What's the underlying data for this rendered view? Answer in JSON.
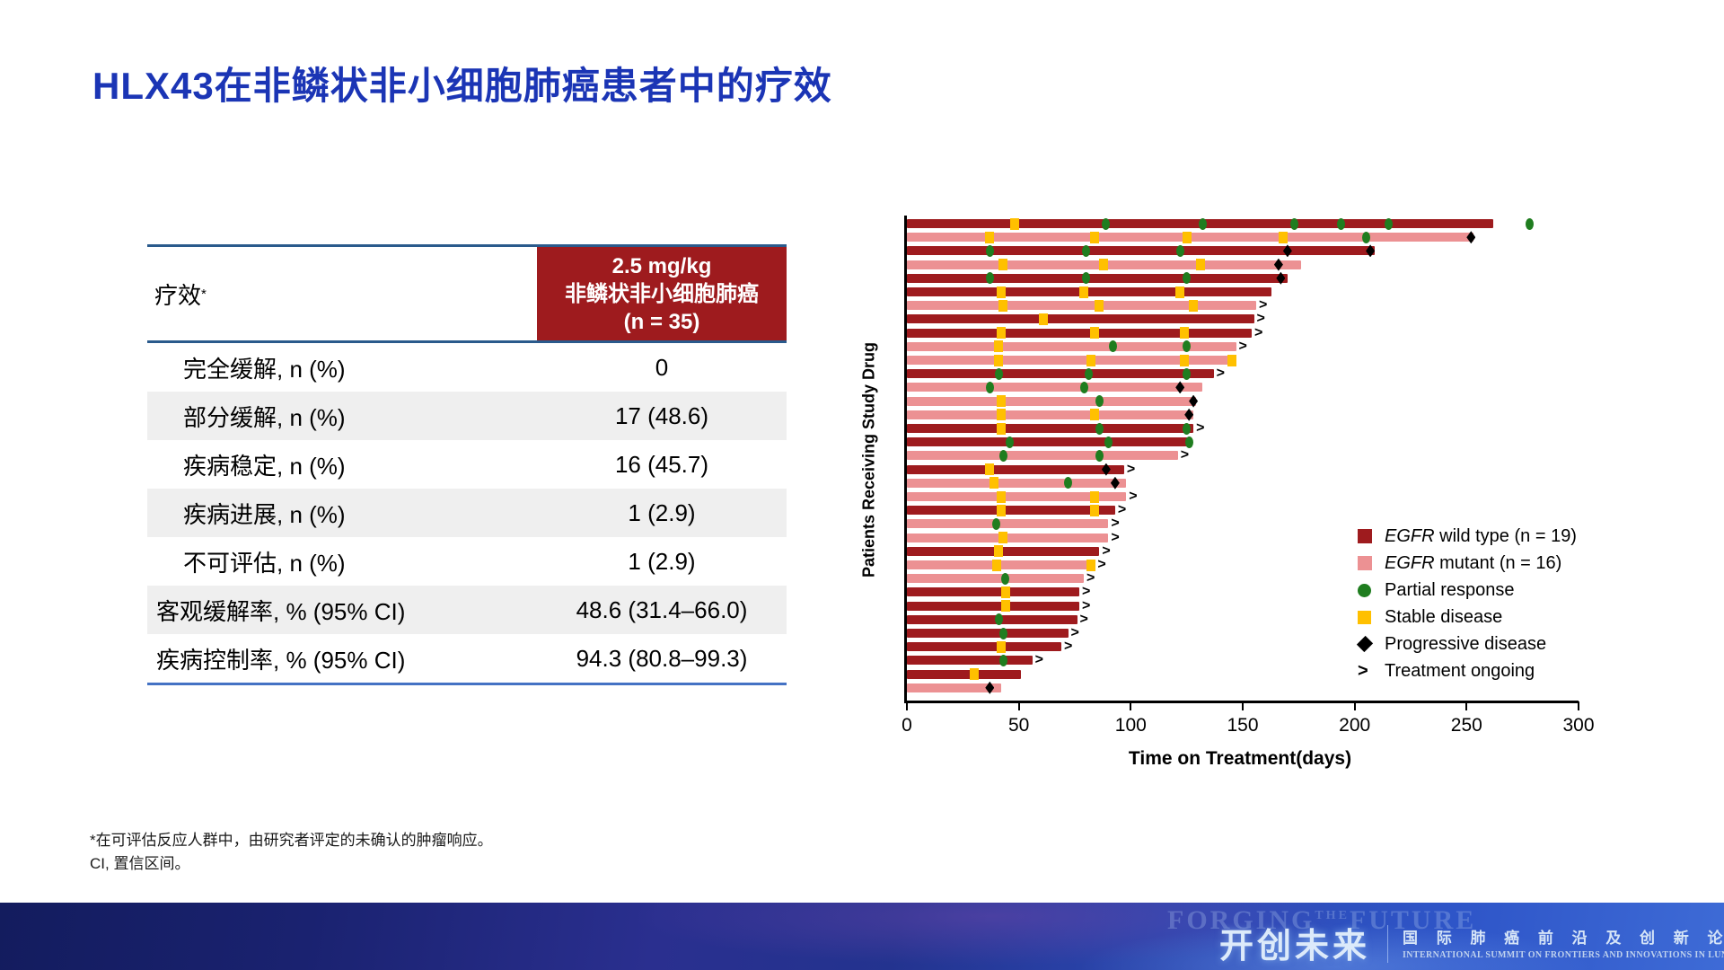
{
  "colors": {
    "title_blue": "#1B35B5",
    "accent_red": "#9E1B1E",
    "row_alt": "#EFEFEF",
    "table_line_top": "#2A5A8C",
    "table_line_bottom": "#4472C4"
  },
  "title": "HLX43在非鳞状非小细胞肺癌患者中的疗效",
  "table": {
    "header_left": "疗效",
    "header_left_sup": "*",
    "header_right_lines": [
      "2.5 mg/kg",
      "非鳞状非小细胞肺癌",
      "(n = 35)"
    ],
    "rows": [
      {
        "label": "完全缓解, n (%)",
        "value": "0",
        "indent": true
      },
      {
        "label": "部分缓解, n (%)",
        "value": "17 (48.6)",
        "indent": true
      },
      {
        "label": "疾病稳定, n (%)",
        "value": "16 (45.7)",
        "indent": true
      },
      {
        "label": "疾病进展, n (%)",
        "value": "1 (2.9)",
        "indent": true
      },
      {
        "label": "不可评估, n (%)",
        "value": "1 (2.9)",
        "indent": true
      },
      {
        "label": "客观缓解率, % (95% CI)",
        "value": "48.6 (31.4–66.0)",
        "indent": false
      },
      {
        "label": "疾病控制率, % (95% CI)",
        "value": "94.3 (80.8–99.3)",
        "indent": false
      }
    ]
  },
  "chart_data": {
    "type": "bar",
    "orientation": "horizontal-swimmer",
    "title": "",
    "xlabel": "Time on Treatment(days)",
    "ylabel": "Patients Receiving Study Drug",
    "xlim": [
      0,
      300
    ],
    "x_ticks": [
      0,
      50,
      100,
      150,
      200,
      250,
      300
    ],
    "grid": false,
    "legend_position": "right-middle",
    "colors": {
      "wild_type": "#9E1B1E",
      "mutant": "#EC9193",
      "partial_response": "#1F7D1F",
      "stable_disease": "#FFC000",
      "progressive_disease": "#000000"
    },
    "legend": [
      {
        "key": "wt",
        "italic": "EGFR",
        "label": " wild type (n = 19)"
      },
      {
        "key": "mut",
        "italic": "EGFR",
        "label": " mutant (n = 16)"
      },
      {
        "key": "PR",
        "italic": "",
        "label": "Partial response"
      },
      {
        "key": "SD",
        "italic": "",
        "label": "Stable disease"
      },
      {
        "key": "PD",
        "italic": "",
        "label": "Progressive disease"
      },
      {
        "key": "ongoing",
        "italic": "",
        "label": "Treatment ongoing"
      }
    ],
    "patients": [
      {
        "group": "wt",
        "end": 262,
        "ongoing": false,
        "markers": [
          {
            "type": "SD",
            "day": 48
          },
          {
            "type": "PR",
            "day": 89
          },
          {
            "type": "PR",
            "day": 132
          },
          {
            "type": "PR",
            "day": 173
          },
          {
            "type": "PR",
            "day": 194
          },
          {
            "type": "PR",
            "day": 215
          },
          {
            "type": "PR",
            "day": 278
          }
        ]
      },
      {
        "group": "mut",
        "end": 253,
        "ongoing": false,
        "markers": [
          {
            "type": "SD",
            "day": 37
          },
          {
            "type": "SD",
            "day": 84
          },
          {
            "type": "SD",
            "day": 125
          },
          {
            "type": "SD",
            "day": 168
          },
          {
            "type": "PR",
            "day": 205
          },
          {
            "type": "PD",
            "day": 252
          }
        ]
      },
      {
        "group": "wt",
        "end": 209,
        "ongoing": false,
        "markers": [
          {
            "type": "PR",
            "day": 37
          },
          {
            "type": "PR",
            "day": 80
          },
          {
            "type": "PR",
            "day": 122
          },
          {
            "type": "PD",
            "day": 170
          },
          {
            "type": "PD",
            "day": 207
          }
        ]
      },
      {
        "group": "mut",
        "end": 176,
        "ongoing": false,
        "markers": [
          {
            "type": "SD",
            "day": 43
          },
          {
            "type": "SD",
            "day": 88
          },
          {
            "type": "SD",
            "day": 131
          },
          {
            "type": "PD",
            "day": 166
          }
        ]
      },
      {
        "group": "wt",
        "end": 170,
        "ongoing": false,
        "markers": [
          {
            "type": "PR",
            "day": 37
          },
          {
            "type": "PR",
            "day": 80
          },
          {
            "type": "PR",
            "day": 125
          },
          {
            "type": "PD",
            "day": 167
          }
        ]
      },
      {
        "group": "wt",
        "end": 163,
        "ongoing": false,
        "markers": [
          {
            "type": "SD",
            "day": 42
          },
          {
            "type": "SD",
            "day": 79
          },
          {
            "type": "SD",
            "day": 122
          }
        ]
      },
      {
        "group": "mut",
        "end": 156,
        "ongoing": true,
        "markers": [
          {
            "type": "SD",
            "day": 43
          },
          {
            "type": "SD",
            "day": 86
          },
          {
            "type": "SD",
            "day": 128
          }
        ]
      },
      {
        "group": "wt",
        "end": 155,
        "ongoing": true,
        "markers": [
          {
            "type": "SD",
            "day": 61
          }
        ]
      },
      {
        "group": "wt",
        "end": 154,
        "ongoing": true,
        "markers": [
          {
            "type": "SD",
            "day": 42
          },
          {
            "type": "SD",
            "day": 84
          },
          {
            "type": "SD",
            "day": 124
          }
        ]
      },
      {
        "group": "mut",
        "end": 147,
        "ongoing": true,
        "markers": [
          {
            "type": "SD",
            "day": 41
          },
          {
            "type": "PR",
            "day": 92
          },
          {
            "type": "PR",
            "day": 125
          }
        ]
      },
      {
        "group": "mut",
        "end": 146,
        "ongoing": false,
        "markers": [
          {
            "type": "SD",
            "day": 41
          },
          {
            "type": "SD",
            "day": 82
          },
          {
            "type": "SD",
            "day": 124
          },
          {
            "type": "SD",
            "day": 145
          }
        ]
      },
      {
        "group": "wt",
        "end": 137,
        "ongoing": true,
        "markers": [
          {
            "type": "PR",
            "day": 41
          },
          {
            "type": "PR",
            "day": 81
          },
          {
            "type": "PR",
            "day": 125
          }
        ]
      },
      {
        "group": "mut",
        "end": 132,
        "ongoing": false,
        "markers": [
          {
            "type": "PR",
            "day": 37
          },
          {
            "type": "PR",
            "day": 79
          },
          {
            "type": "PD",
            "day": 122
          }
        ]
      },
      {
        "group": "mut",
        "end": 129,
        "ongoing": false,
        "markers": [
          {
            "type": "SD",
            "day": 42
          },
          {
            "type": "PR",
            "day": 86
          },
          {
            "type": "PD",
            "day": 128
          }
        ]
      },
      {
        "group": "mut",
        "end": 128,
        "ongoing": false,
        "markers": [
          {
            "type": "SD",
            "day": 42
          },
          {
            "type": "SD",
            "day": 84
          },
          {
            "type": "PD",
            "day": 126
          }
        ]
      },
      {
        "group": "wt",
        "end": 128,
        "ongoing": true,
        "markers": [
          {
            "type": "SD",
            "day": 42
          },
          {
            "type": "PR",
            "day": 86
          },
          {
            "type": "PR",
            "day": 125
          }
        ]
      },
      {
        "group": "wt",
        "end": 127,
        "ongoing": false,
        "markers": [
          {
            "type": "PR",
            "day": 46
          },
          {
            "type": "PR",
            "day": 90
          },
          {
            "type": "PR",
            "day": 126
          }
        ]
      },
      {
        "group": "mut",
        "end": 121,
        "ongoing": true,
        "markers": [
          {
            "type": "PR",
            "day": 43
          },
          {
            "type": "PR",
            "day": 86
          }
        ]
      },
      {
        "group": "wt",
        "end": 97,
        "ongoing": true,
        "markers": [
          {
            "type": "SD",
            "day": 37
          },
          {
            "type": "PD",
            "day": 89
          }
        ]
      },
      {
        "group": "mut",
        "end": 98,
        "ongoing": false,
        "markers": [
          {
            "type": "SD",
            "day": 39
          },
          {
            "type": "PR",
            "day": 72
          },
          {
            "type": "PD",
            "day": 93
          }
        ]
      },
      {
        "group": "mut",
        "end": 98,
        "ongoing": true,
        "markers": [
          {
            "type": "SD",
            "day": 42
          },
          {
            "type": "SD",
            "day": 84
          }
        ]
      },
      {
        "group": "wt",
        "end": 93,
        "ongoing": true,
        "markers": [
          {
            "type": "SD",
            "day": 42
          },
          {
            "type": "SD",
            "day": 84
          }
        ]
      },
      {
        "group": "mut",
        "end": 90,
        "ongoing": true,
        "markers": [
          {
            "type": "PR",
            "day": 40
          }
        ]
      },
      {
        "group": "mut",
        "end": 90,
        "ongoing": true,
        "markers": [
          {
            "type": "SD",
            "day": 43
          }
        ]
      },
      {
        "group": "wt",
        "end": 86,
        "ongoing": true,
        "markers": [
          {
            "type": "SD",
            "day": 41
          }
        ]
      },
      {
        "group": "mut",
        "end": 84,
        "ongoing": true,
        "markers": [
          {
            "type": "SD",
            "day": 40
          },
          {
            "type": "SD",
            "day": 82
          }
        ]
      },
      {
        "group": "mut",
        "end": 79,
        "ongoing": true,
        "markers": [
          {
            "type": "PR",
            "day": 44
          }
        ]
      },
      {
        "group": "wt",
        "end": 77,
        "ongoing": true,
        "markers": [
          {
            "type": "SD",
            "day": 44
          }
        ]
      },
      {
        "group": "wt",
        "end": 77,
        "ongoing": true,
        "markers": [
          {
            "type": "SD",
            "day": 44
          }
        ]
      },
      {
        "group": "wt",
        "end": 76,
        "ongoing": true,
        "markers": [
          {
            "type": "PR",
            "day": 41
          }
        ]
      },
      {
        "group": "wt",
        "end": 72,
        "ongoing": true,
        "markers": [
          {
            "type": "PR",
            "day": 43
          }
        ]
      },
      {
        "group": "wt",
        "end": 69,
        "ongoing": true,
        "markers": [
          {
            "type": "SD",
            "day": 42
          }
        ]
      },
      {
        "group": "wt",
        "end": 56,
        "ongoing": true,
        "markers": [
          {
            "type": "PR",
            "day": 43
          }
        ]
      },
      {
        "group": "wt",
        "end": 51,
        "ongoing": false,
        "markers": [
          {
            "type": "SD",
            "day": 30
          }
        ]
      },
      {
        "group": "mut",
        "end": 42,
        "ongoing": false,
        "markers": [
          {
            "type": "PD",
            "day": 37
          }
        ]
      }
    ]
  },
  "footnotes": [
    "*在可评估反应人群中，由研究者评定的未确认的肿瘤响应。",
    "CI, 置信区间。"
  ],
  "banner": {
    "watermark_pre": "FORGING",
    "watermark_mid": "THE",
    "watermark_post": "FUTURE",
    "headline": "开创未来",
    "cn_line": "国 际 肺 癌 前 沿 及 创 新 论 坛",
    "en_line": "INTERNATIONAL SUMMIT ON FRONTIERS AND INNOVATIONS IN LUNG CANCER"
  }
}
